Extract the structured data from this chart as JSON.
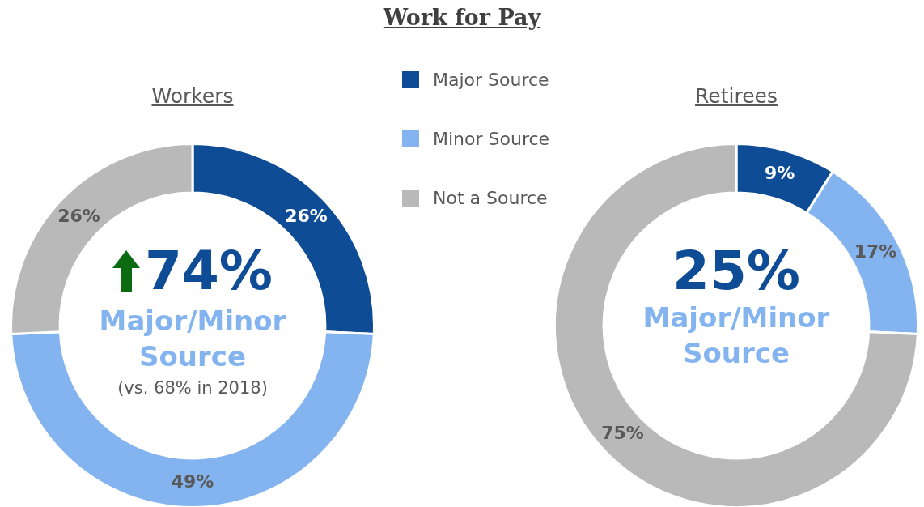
{
  "chart_data": [
    {
      "type": "donut",
      "title": "Work for Pay",
      "subtitle": "Workers",
      "categories": [
        "Major Source",
        "Minor Source",
        "Not a Source"
      ],
      "values": [
        26,
        49,
        26
      ],
      "colors": [
        "#0f4c96",
        "#84b4f0",
        "#b9b9b9"
      ],
      "value_labels": [
        "26%",
        "49%",
        "26%"
      ],
      "legend": "right",
      "annotations": [
        "74%",
        "Major/Minor Source",
        "(vs. 68% in 2018)"
      ]
    },
    {
      "type": "donut",
      "subtitle": "Retirees",
      "categories": [
        null,
        null,
        null
      ],
      "values": [
        9,
        17,
        75
      ],
      "colors": [
        "#0f4c96",
        "#84b4f0",
        "#b9b9b9"
      ],
      "value_labels": [
        "9%",
        "17%",
        "75%"
      ],
      "annotations": [
        "25%",
        "Major/Minor Source"
      ]
    }
  ]
}
